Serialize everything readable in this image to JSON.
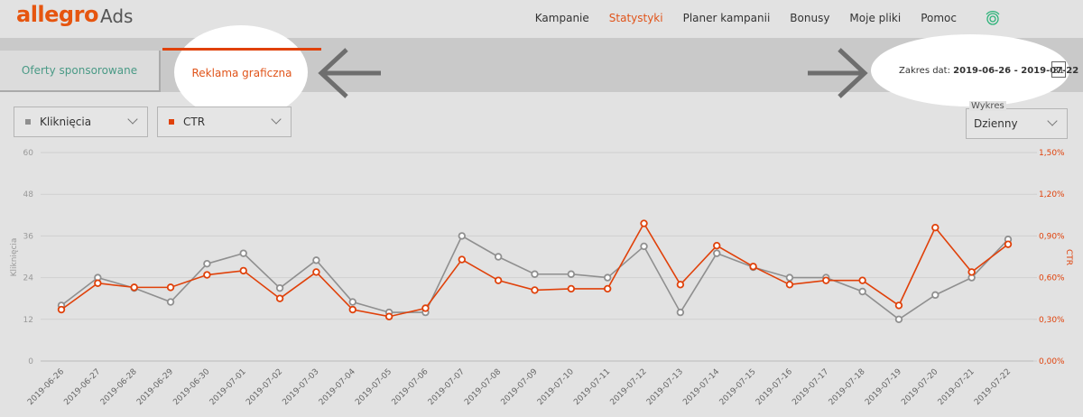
{
  "header": {
    "logo": "allegro",
    "product": "Ads",
    "nav": [
      "Kampanie",
      "Statystyki",
      "Planer kampanii",
      "Bonusy",
      "Moje pliki",
      "Pomoc"
    ]
  },
  "tabs": [
    "Oferty sponsorowane",
    "Reklama graficzna"
  ],
  "date_range": {
    "label": "Zakres dat:",
    "value": "2019-06-26 - 2019-07-22"
  },
  "calendar_icon": "31",
  "chart_mode": {
    "label": "Wykres",
    "value": "Dzienny"
  },
  "chart_data": {
    "type": "line",
    "categories": [
      "2019-06-26",
      "2019-06-27",
      "2019-06-28",
      "2019-06-29",
      "2019-06-30",
      "2019-07-01",
      "2019-07-02",
      "2019-07-03",
      "2019-07-04",
      "2019-07-05",
      "2019-07-06",
      "2019-07-07",
      "2019-07-08",
      "2019-07-09",
      "2019-07-10",
      "2019-07-11",
      "2019-07-12",
      "2019-07-13",
      "2019-07-14",
      "2019-07-15",
      "2019-07-16",
      "2019-07-17",
      "2019-07-18",
      "2019-07-19",
      "2019-07-20",
      "2019-07-21",
      "2019-07-22"
    ],
    "series": [
      {
        "name": "Kliknięcia",
        "color": "#8f8f8f",
        "values": [
          16,
          24,
          21,
          17,
          28,
          31,
          21,
          29,
          17,
          14,
          14,
          36,
          30,
          25,
          25,
          24,
          33,
          14,
          31,
          27,
          24,
          24,
          20,
          12,
          19,
          24,
          35
        ]
      },
      {
        "name": "CTR",
        "color": "#e0410a",
        "axis": "y2",
        "values": [
          0.37,
          0.56,
          0.53,
          0.53,
          0.62,
          0.65,
          0.45,
          0.64,
          0.37,
          0.32,
          0.38,
          0.73,
          0.58,
          0.51,
          0.52,
          0.52,
          0.99,
          0.55,
          0.83,
          0.68,
          0.55,
          0.58,
          0.58,
          0.4,
          0.96,
          0.64,
          0.84
        ]
      }
    ],
    "ylabel": "Kliknięcia",
    "y2label": "CTR",
    "ylim": [
      0,
      60
    ],
    "yticks": [
      0,
      12,
      24,
      36,
      48,
      60
    ],
    "y2lim": [
      0,
      1.5
    ],
    "y2ticks": [
      {
        "value": 0,
        "label": "0,00%"
      },
      {
        "value": 0.3,
        "label": "0,30%"
      },
      {
        "value": 0.6,
        "label": "0,60%"
      },
      {
        "value": 0.9,
        "label": "0,90%"
      },
      {
        "value": 1.2,
        "label": "1,20%"
      },
      {
        "value": 1.5,
        "label": "1,50%"
      }
    ],
    "grid": true
  }
}
